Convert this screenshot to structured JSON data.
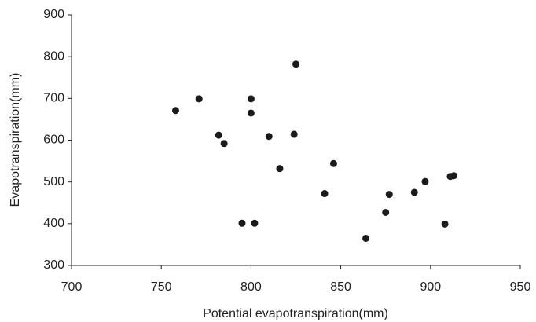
{
  "chart_data": {
    "type": "scatter",
    "x_label": "Potential evapotranspiration(mm)",
    "y_label": "Evapotranspiration(mm)",
    "x": [
      758,
      771,
      782,
      785,
      800,
      800,
      795,
      802,
      810,
      816,
      824,
      825,
      841,
      846,
      864,
      875,
      877,
      891,
      897,
      908,
      911,
      913
    ],
    "values": [
      671,
      699,
      612,
      592,
      699,
      665,
      401,
      401,
      609,
      532,
      614,
      782,
      472,
      544,
      365,
      427,
      470,
      475,
      501,
      399,
      513,
      515
    ],
    "color": "#1a1a1a",
    "xlim": [
      700,
      950
    ],
    "xticks": [
      700,
      750,
      800,
      850,
      900,
      950
    ],
    "ylim": [
      300,
      900
    ],
    "yticks": [
      300,
      400,
      500,
      600,
      700,
      800,
      900
    ],
    "grid": false
  }
}
